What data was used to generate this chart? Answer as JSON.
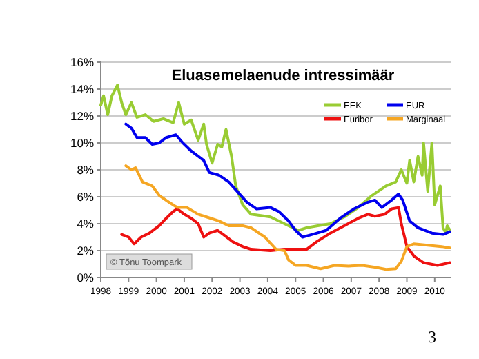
{
  "chart_data": {
    "type": "line",
    "title": "Eluasemelaenude intressimäär",
    "xlim": [
      1998,
      2010.6
    ],
    "xticks": [
      1998,
      1999,
      2000,
      2001,
      2002,
      2003,
      2004,
      2005,
      2006,
      2007,
      2008,
      2009,
      2010
    ],
    "ylim": [
      0,
      16
    ],
    "yticks": [
      {
        "value": 0,
        "label": "0%"
      },
      {
        "value": 2,
        "label": "2%"
      },
      {
        "value": 4,
        "label": "4%"
      },
      {
        "value": 6,
        "label": "6%"
      },
      {
        "value": 8,
        "label": "8%"
      },
      {
        "value": 10,
        "label": "10%"
      },
      {
        "value": 12,
        "label": "12%"
      },
      {
        "value": 14,
        "label": "14%"
      },
      {
        "value": 16,
        "label": "16%"
      }
    ],
    "grid": "y",
    "legend": "top right",
    "marker": "none",
    "line_style": "solid",
    "annotations": [
      "© Tõnu Toompark",
      "3"
    ],
    "series": [
      {
        "name": "EEK",
        "color": "#99cc33",
        "x": [
          1998,
          1998.1,
          1998.25,
          1998.4,
          1998.6,
          1998.75,
          1998.9,
          1999.1,
          1999.3,
          1999.6,
          1999.9,
          2000.25,
          2000.6,
          2000.8,
          2001,
          2001.25,
          2001.5,
          2001.7,
          2001.8,
          2002,
          2002.2,
          2002.35,
          2002.5,
          2002.7,
          2002.85,
          2003.1,
          2003.4,
          2004.1,
          2004.75,
          2005.1,
          2005.4,
          2005.8,
          2006.25,
          2006.75,
          2007.25,
          2007.75,
          2008.25,
          2008.6,
          2008.8,
          2009,
          2009.1,
          2009.25,
          2009.4,
          2009.55,
          2009.6,
          2009.75,
          2009.9,
          2010,
          2010.2,
          2010.3,
          2010.4,
          2010.45,
          2010.55
        ],
        "values": [
          12.8,
          13.5,
          12.1,
          13.5,
          14.3,
          13,
          12.1,
          13,
          11.9,
          12.1,
          11.6,
          11.8,
          11.5,
          13,
          11.4,
          11.7,
          10.2,
          11.4,
          9.9,
          8.5,
          9.9,
          9.7,
          11,
          9,
          6.8,
          5.4,
          4.7,
          4.5,
          3.85,
          3.5,
          3.7,
          3.85,
          4,
          4.5,
          5.2,
          6.1,
          6.8,
          7.1,
          8,
          7,
          8.7,
          7.1,
          9,
          7.6,
          10,
          6.4,
          10,
          5.4,
          6.8,
          3.7,
          3.3,
          3.85,
          3.5
        ]
      },
      {
        "name": "EUR",
        "color": "#0000ee",
        "x": [
          1998.9,
          1999.1,
          1999.3,
          1999.6,
          1999.85,
          2000.1,
          2000.35,
          2000.7,
          2000.95,
          2001.25,
          2001.7,
          2001.9,
          2002.25,
          2002.6,
          2002.9,
          2003.25,
          2003.6,
          2004.1,
          2004.4,
          2004.75,
          2005,
          2005.25,
          2005.6,
          2006.1,
          2006.6,
          2007.1,
          2007.6,
          2007.85,
          2008.1,
          2008.45,
          2008.7,
          2008.85,
          2009.1,
          2009.4,
          2009.9,
          2010.3,
          2010.55
        ],
        "values": [
          11.4,
          11.1,
          10.4,
          10.4,
          9.9,
          10,
          10.4,
          10.6,
          10,
          9.4,
          8.7,
          7.8,
          7.6,
          7.1,
          6.4,
          5.6,
          5.1,
          5.2,
          4.9,
          4.2,
          3.5,
          3,
          3.2,
          3.5,
          4.4,
          5.1,
          5.6,
          5.75,
          5.2,
          5.75,
          6.2,
          5.75,
          4.2,
          3.7,
          3.3,
          3.2,
          3.4
        ]
      },
      {
        "name": "Euribor",
        "color": "#ee1111",
        "x": [
          1998.75,
          1999,
          1999.2,
          1999.45,
          1999.75,
          2000.1,
          2000.35,
          2000.6,
          2000.75,
          2001,
          2001.25,
          2001.5,
          2001.7,
          2001.9,
          2002.2,
          2002.4,
          2002.75,
          2003.1,
          2003.4,
          2004.1,
          2004.6,
          2005.4,
          2005.75,
          2006.25,
          2006.75,
          2007.25,
          2007.6,
          2007.85,
          2008.2,
          2008.45,
          2008.7,
          2008.8,
          2009,
          2009.25,
          2009.6,
          2010.1,
          2010.55
        ],
        "values": [
          3.2,
          3,
          2.5,
          3,
          3.3,
          3.85,
          4.4,
          4.9,
          5.1,
          4.7,
          4.4,
          4,
          3,
          3.3,
          3.5,
          3.2,
          2.65,
          2.3,
          2.1,
          2,
          2.1,
          2.1,
          2.65,
          3.3,
          3.85,
          4.4,
          4.7,
          4.55,
          4.7,
          5.1,
          5.2,
          4,
          2.3,
          1.6,
          1.1,
          0.9,
          1.1
        ]
      },
      {
        "name": "Marginaal",
        "color": "#f5a623",
        "x": [
          1998.9,
          1999.1,
          1999.25,
          1999.5,
          1999.85,
          2000.1,
          2000.45,
          2000.75,
          2001.1,
          2001.5,
          2001.8,
          2002.25,
          2002.6,
          2002.9,
          2003.1,
          2003.4,
          2003.9,
          2004.3,
          2004.6,
          2004.75,
          2005,
          2005.4,
          2005.9,
          2006.4,
          2006.9,
          2007.4,
          2007.9,
          2008.25,
          2008.6,
          2008.8,
          2009,
          2009.25,
          2009.75,
          2010.25,
          2010.55
        ],
        "values": [
          8.3,
          8,
          8.15,
          7.1,
          6.8,
          6.1,
          5.6,
          5.2,
          5.2,
          4.7,
          4.5,
          4.2,
          3.85,
          3.85,
          3.85,
          3.7,
          3,
          2.1,
          2,
          1.3,
          0.9,
          0.9,
          0.65,
          0.9,
          0.85,
          0.9,
          0.75,
          0.6,
          0.65,
          1.2,
          2.3,
          2.5,
          2.4,
          2.3,
          2.2
        ]
      }
    ]
  }
}
